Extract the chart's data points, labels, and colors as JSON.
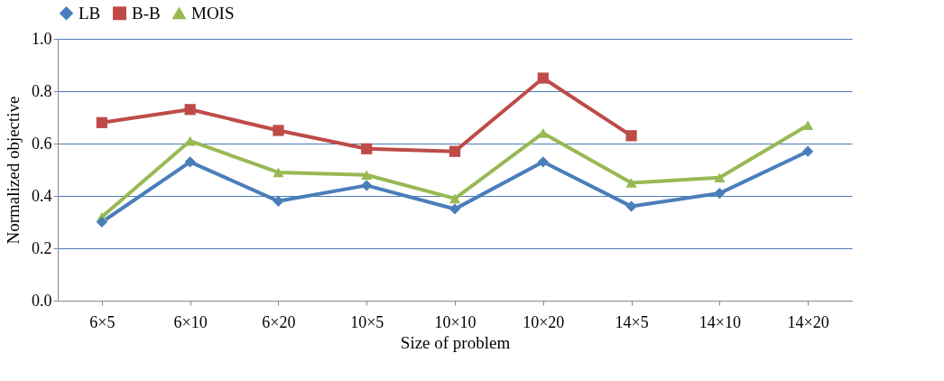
{
  "chart_data": {
    "type": "line",
    "xlabel": "Size of problem",
    "ylabel": "Normalized objective",
    "categories": [
      "6×5",
      "6×10",
      "6×20",
      "10×5",
      "10×10",
      "10×20",
      "14×5",
      "14×10",
      "14×20"
    ],
    "series": [
      {
        "name": "LB",
        "color": "#4a7ebb",
        "marker": "diamond",
        "values": [
          0.3,
          0.53,
          0.38,
          0.44,
          0.35,
          0.53,
          0.36,
          0.41,
          0.57
        ]
      },
      {
        "name": "B-B",
        "color": "#be4b48",
        "marker": "square",
        "values": [
          0.68,
          0.73,
          0.65,
          0.58,
          0.57,
          0.85,
          0.63,
          null,
          null
        ]
      },
      {
        "name": "MOIS",
        "color": "#98b954",
        "marker": "triangle",
        "values": [
          0.32,
          0.61,
          0.49,
          0.48,
          0.39,
          0.64,
          0.45,
          0.47,
          0.67
        ]
      }
    ],
    "ylim": [
      0,
      1
    ],
    "yticks": [
      {
        "value": 0,
        "label": "0.0"
      },
      {
        "value": 0.2,
        "label": "0.2"
      },
      {
        "value": 0.4,
        "label": "0.4"
      },
      {
        "value": 0.6,
        "label": "0.6"
      },
      {
        "value": 0.8,
        "label": "0.8"
      },
      {
        "value": 1,
        "label": "1.0"
      }
    ],
    "grid": "y",
    "legend": "top",
    "line_style": "solid"
  }
}
